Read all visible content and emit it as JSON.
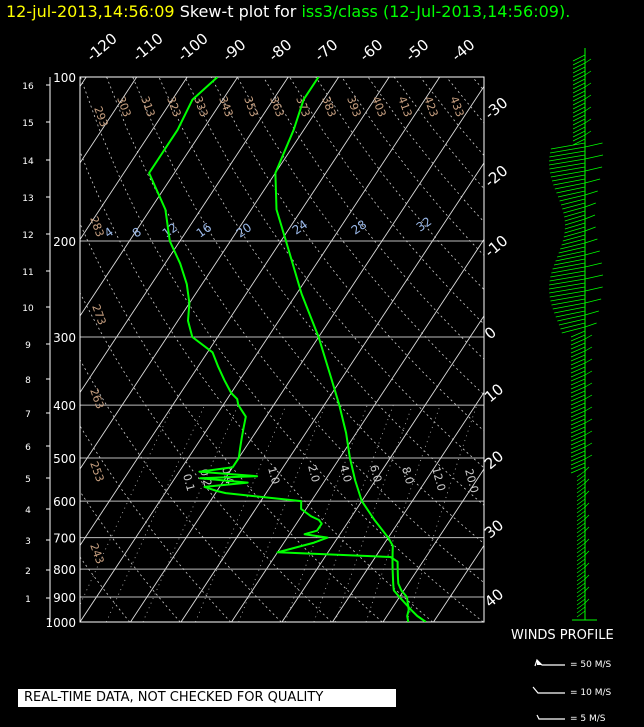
{
  "title": {
    "date": "12-jul-2013,14:56:09",
    "text": "Skew-t plot for",
    "source": "iss3/class (12-Jul-2013,14:56:09)."
  },
  "notice": "REAL-TIME DATA, NOT CHECKED FOR QUALITY",
  "winds": {
    "title": "WINDS PROFILE",
    "legend": [
      "= 50 M/S",
      "= 10 M/S",
      "= 5 M/S"
    ]
  },
  "colors": {
    "trace": "#00ff00",
    "grid": "#ffffff",
    "theta": "#c8a080",
    "mixing": "#9ab8e8"
  },
  "chart_data": {
    "type": "line",
    "title": "Skew-t plot",
    "pressure_ticks": [
      100,
      200,
      300,
      400,
      500,
      600,
      700,
      800,
      900,
      1000
    ],
    "height_ticks_km": [
      1,
      2,
      3,
      4,
      5,
      6,
      7,
      8,
      9,
      10,
      11,
      12,
      13,
      14,
      15,
      16
    ],
    "temp_ticks_top": [
      -120,
      -110,
      -100,
      -90,
      -80,
      -70,
      -60,
      -50,
      -40
    ],
    "temp_ticks_right": [
      -30,
      -20,
      -10,
      0,
      10,
      20,
      30,
      40
    ],
    "theta_labels": [
      "293",
      "303",
      "313",
      "323",
      "333",
      "343",
      "353",
      "363",
      "373",
      "383",
      "393",
      "403",
      "413",
      "423",
      "433",
      "283",
      "273",
      "263",
      "253",
      "243"
    ],
    "mixing_ratio_labels_top": [
      "4",
      "8",
      "12",
      "16",
      "20",
      "24",
      "28",
      "32"
    ],
    "mixing_ratio_labels_mid": [
      "0.1",
      "0.2",
      "0.4",
      "1.0",
      "2.0",
      "4.0",
      "6.0",
      "8.0",
      "12.0",
      "20.0"
    ],
    "series": [
      {
        "name": "temperature",
        "pressure": [
          1000,
          975,
          950,
          925,
          900,
          875,
          850,
          825,
          800,
          775,
          750,
          725,
          700,
          650,
          600,
          550,
          500,
          450,
          400,
          350,
          300,
          250,
          200,
          175,
          150,
          125,
          110,
          100
        ],
        "temp": [
          28.5,
          26.0,
          24.0,
          22.0,
          20.0,
          18.0,
          17.0,
          16.0,
          15.0,
          14.0,
          13.0,
          12.0,
          10.0,
          5.0,
          0.0,
          -4.0,
          -8.0,
          -12.0,
          -17.0,
          -23.0,
          -30.0,
          -39.0,
          -49.0,
          -55.0,
          -60.0,
          -62.0,
          -64.0,
          -64.0
        ]
      },
      {
        "name": "dewpoint",
        "pressure": [
          1000,
          975,
          950,
          925,
          900,
          875,
          850,
          825,
          800,
          775,
          760,
          745,
          735,
          725,
          715,
          700,
          690,
          680,
          660,
          650,
          640,
          620,
          600,
          580,
          575,
          565,
          555,
          545,
          540,
          530,
          520,
          500,
          480,
          460,
          440,
          420,
          400,
          390,
          380,
          360,
          340,
          320,
          300,
          280,
          260,
          240,
          220,
          200,
          175,
          150,
          125,
          110,
          100
        ],
        "temp": [
          25.0,
          24.0,
          23.5,
          22.5,
          21.5,
          19.5,
          18.0,
          17.0,
          16.0,
          15.0,
          13.0,
          -10.0,
          -8.0,
          -6.0,
          -4.0,
          -2.0,
          -7.0,
          -5.0,
          -5.0,
          -6.0,
          -8.0,
          -11.0,
          -12.0,
          -28.0,
          -30.0,
          -33.0,
          -25.0,
          -35.0,
          -24.0,
          -36.0,
          -30.0,
          -30.0,
          -31.0,
          -32.0,
          -33.0,
          -34.0,
          -37.0,
          -38.0,
          -40.0,
          -43.0,
          -46.0,
          -49.0,
          -55.0,
          -58.0,
          -60.0,
          -63.0,
          -67.0,
          -72.0,
          -77.0,
          -85.0,
          -85.0,
          -86.0,
          -84.0
        ]
      }
    ],
    "ylim": [
      1000,
      100
    ],
    "xlim": [
      -40,
      40
    ]
  }
}
